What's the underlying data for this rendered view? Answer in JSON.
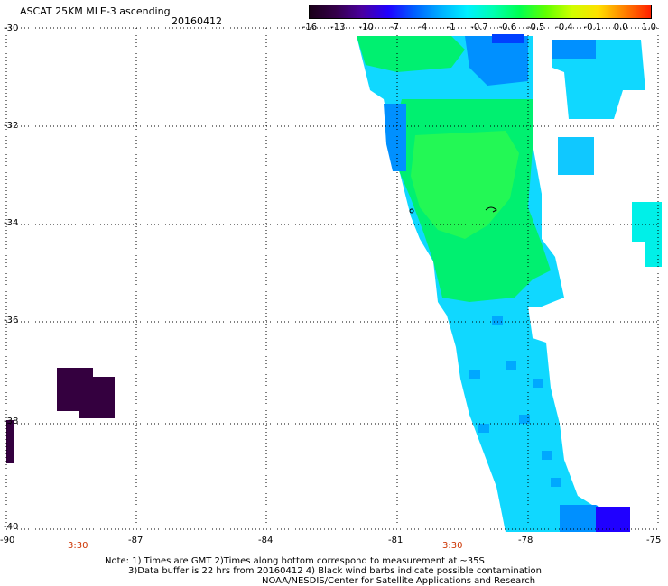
{
  "title": "ASCAT 25KM MLE-3 ascending",
  "date": "20160412",
  "colorbar": {
    "labels": [
      "-16",
      "-13",
      "-10",
      "-7",
      "-4",
      "-1",
      "-0.7",
      "-0.6",
      "-0.5",
      "-0.4",
      "-0.1",
      "0.0",
      "1.0"
    ],
    "colors": [
      "#1a0018",
      "#35004a",
      "#4a00a0",
      "#2000ff",
      "#0060ff",
      "#00b0ff",
      "#00f0ff",
      "#00ffb0",
      "#00ff50",
      "#60ff00",
      "#d0ff00",
      "#ffe000",
      "#ff8000",
      "#ff2000"
    ]
  },
  "axes": {
    "lat_labels": [
      "-30",
      "-32",
      "-34",
      "-36",
      "-38",
      "-40"
    ],
    "lon_labels": [
      "-90",
      "-87",
      "-84",
      "-81",
      "-78",
      "-75"
    ]
  },
  "times": [
    "3:30",
    "3:30"
  ],
  "notes": [
    "Note: 1) Times are GMT 2)Times along bottom correspond to measurement at ~35S",
    "3)Data buffer is 22 hrs from 20160412 4) Black wind barbs indicate possible contamination",
    "NOAA/NESDIS/Center for Satellite Applications and Research"
  ],
  "colors": {
    "grid": "#000000",
    "time_label": "#cc3300",
    "dark_cells": "#34003f"
  }
}
